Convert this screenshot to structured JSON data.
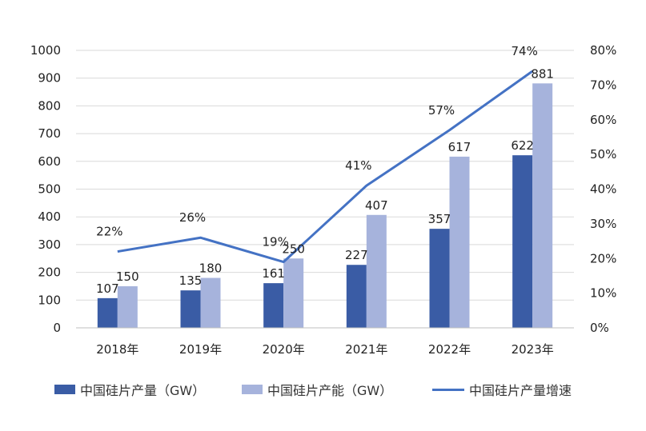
{
  "colors": {
    "production": "#3a5ca5",
    "capacity": "#a6b3dc",
    "growth": "#4472c4",
    "grid": "#d9d9d9"
  },
  "chart_data": {
    "type": "bar",
    "categories": [
      "2018年",
      "2019年",
      "2020年",
      "2021年",
      "2022年",
      "2023年"
    ],
    "series": [
      {
        "name": "中国硅片产量（GW）",
        "kind": "bar",
        "axis": "left",
        "values": [
          107,
          135,
          161,
          227,
          357,
          622
        ]
      },
      {
        "name": "中国硅片产能（GW）",
        "kind": "bar",
        "axis": "left",
        "values": [
          150,
          180,
          250,
          407,
          617,
          881
        ]
      },
      {
        "name": "中国硅片产量增速",
        "kind": "line",
        "axis": "right",
        "values": [
          22,
          26,
          19,
          41,
          57,
          74
        ]
      }
    ],
    "y_left": {
      "min": 0,
      "max": 1000,
      "step": 100
    },
    "y_right": {
      "min": 0,
      "max": 80,
      "step": 10,
      "suffix": "%"
    },
    "grid": true,
    "legend_position": "bottom"
  }
}
